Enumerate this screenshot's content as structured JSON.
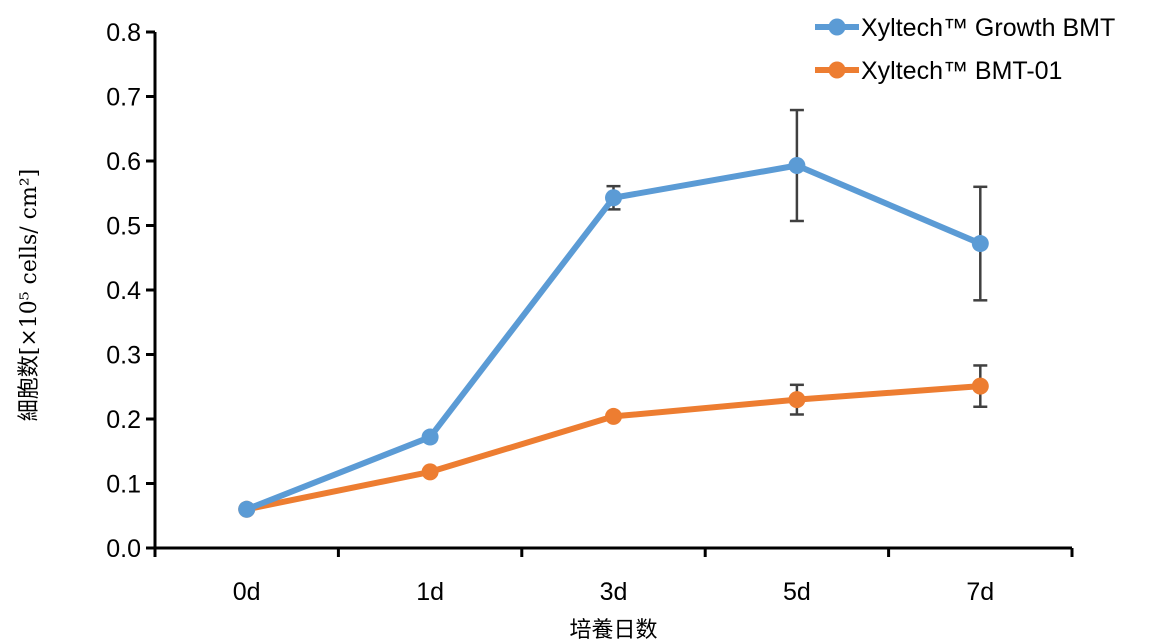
{
  "chart_data": {
    "type": "line",
    "title": "",
    "xlabel": "培養日数",
    "ylabel": "細胞数[×10⁵ cells/ cm²]",
    "categories": [
      "0d",
      "1d",
      "3d",
      "5d",
      "7d"
    ],
    "ylim": [
      0.0,
      0.8
    ],
    "yticks": [
      "0.0",
      "0.1",
      "0.2",
      "0.3",
      "0.4",
      "0.5",
      "0.6",
      "0.7",
      "0.8"
    ],
    "grid": false,
    "legend_position": "top-right",
    "series": [
      {
        "name": "Xyltech™ Growth BMT",
        "color": "#5b9bd5",
        "values": [
          0.06,
          0.172,
          0.543,
          0.593,
          0.472
        ],
        "errors": [
          0.0,
          0.0,
          0.018,
          0.086,
          0.088
        ]
      },
      {
        "name": "Xyltech™ BMT-01",
        "color": "#ed7d31",
        "values": [
          0.06,
          0.118,
          0.204,
          0.23,
          0.251
        ],
        "errors": [
          0.0,
          0.0,
          0.0,
          0.023,
          0.032
        ]
      }
    ]
  }
}
